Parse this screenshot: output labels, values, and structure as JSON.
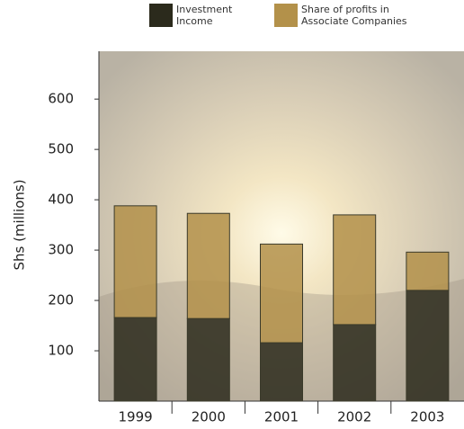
{
  "chart_data": {
    "type": "stacked-bar",
    "y_label": "Shs (millions)",
    "categories": [
      "1999",
      "2000",
      "2001",
      "2002",
      "2003"
    ],
    "series": [
      {
        "name": "Investment Income",
        "color": "#2b2a1c",
        "values": [
          166,
          164,
          116,
          152,
          220
        ]
      },
      {
        "name": "Share of profits in Associate Companies",
        "color": "#b3914a",
        "values": [
          222,
          209,
          196,
          218,
          76
        ]
      }
    ],
    "ylim": [
      0,
      695
    ],
    "yticks": [
      100,
      200,
      300,
      400,
      500,
      600
    ]
  }
}
